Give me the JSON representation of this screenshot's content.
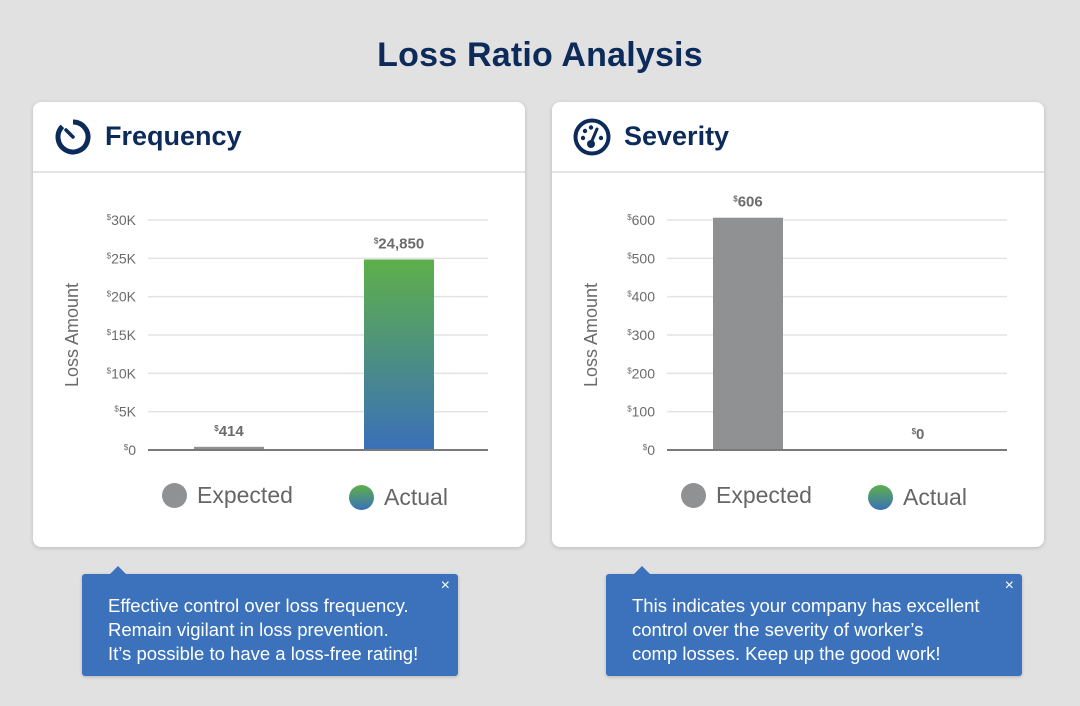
{
  "page": {
    "title": "Loss Ratio Analysis"
  },
  "colors": {
    "title": "#0d2b5a",
    "expected": "#909193",
    "actual_top": "#5eb04a",
    "actual_bottom": "#3a70b8",
    "tip_bg": "#3b72bb",
    "grid": "#e3e3e3",
    "axis": "#7a7a7a"
  },
  "cards": [
    {
      "title": "Frequency",
      "icon": "timer-icon",
      "legend": [
        "Expected",
        "Actual"
      ],
      "tip": {
        "lines": [
          "Effective control over loss frequency.",
          "Remain vigilant in loss prevention.",
          "It’s possible to have a loss-free rating!"
        ],
        "close": "×"
      }
    },
    {
      "title": "Severity",
      "icon": "speedometer-icon",
      "legend": [
        "Expected",
        "Actual"
      ],
      "tip": {
        "lines": [
          "This indicates your company has excellent",
          "control over the severity of worker’s",
          "comp losses. Keep up the good work!"
        ],
        "close": "×"
      }
    }
  ],
  "chart_data": [
    {
      "type": "bar",
      "title": "Frequency",
      "xlabel": "",
      "ylabel": "Loss Amount",
      "categories": [
        "Expected",
        "Actual"
      ],
      "values": [
        414,
        24850
      ],
      "data_labels": [
        "414",
        "24,850"
      ],
      "currency_symbol": "$",
      "ylim": [
        0,
        30000
      ],
      "yticks": [
        0,
        5000,
        10000,
        15000,
        20000,
        25000,
        30000
      ],
      "ytick_labels": [
        "0",
        "5K",
        "10K",
        "15K",
        "20K",
        "25K",
        "30K"
      ],
      "grid": true,
      "legend": [
        "Expected",
        "Actual"
      ],
      "legend_position": "bottom"
    },
    {
      "type": "bar",
      "title": "Severity",
      "xlabel": "",
      "ylabel": "Loss Amount",
      "categories": [
        "Expected",
        "Actual"
      ],
      "values": [
        606,
        0
      ],
      "data_labels": [
        "606",
        "0"
      ],
      "currency_symbol": "$",
      "ylim": [
        0,
        600
      ],
      "yticks": [
        0,
        100,
        200,
        300,
        400,
        500,
        600
      ],
      "ytick_labels": [
        "0",
        "100",
        "200",
        "300",
        "400",
        "500",
        "600"
      ],
      "grid": true,
      "legend": [
        "Expected",
        "Actual"
      ],
      "legend_position": "bottom"
    }
  ]
}
